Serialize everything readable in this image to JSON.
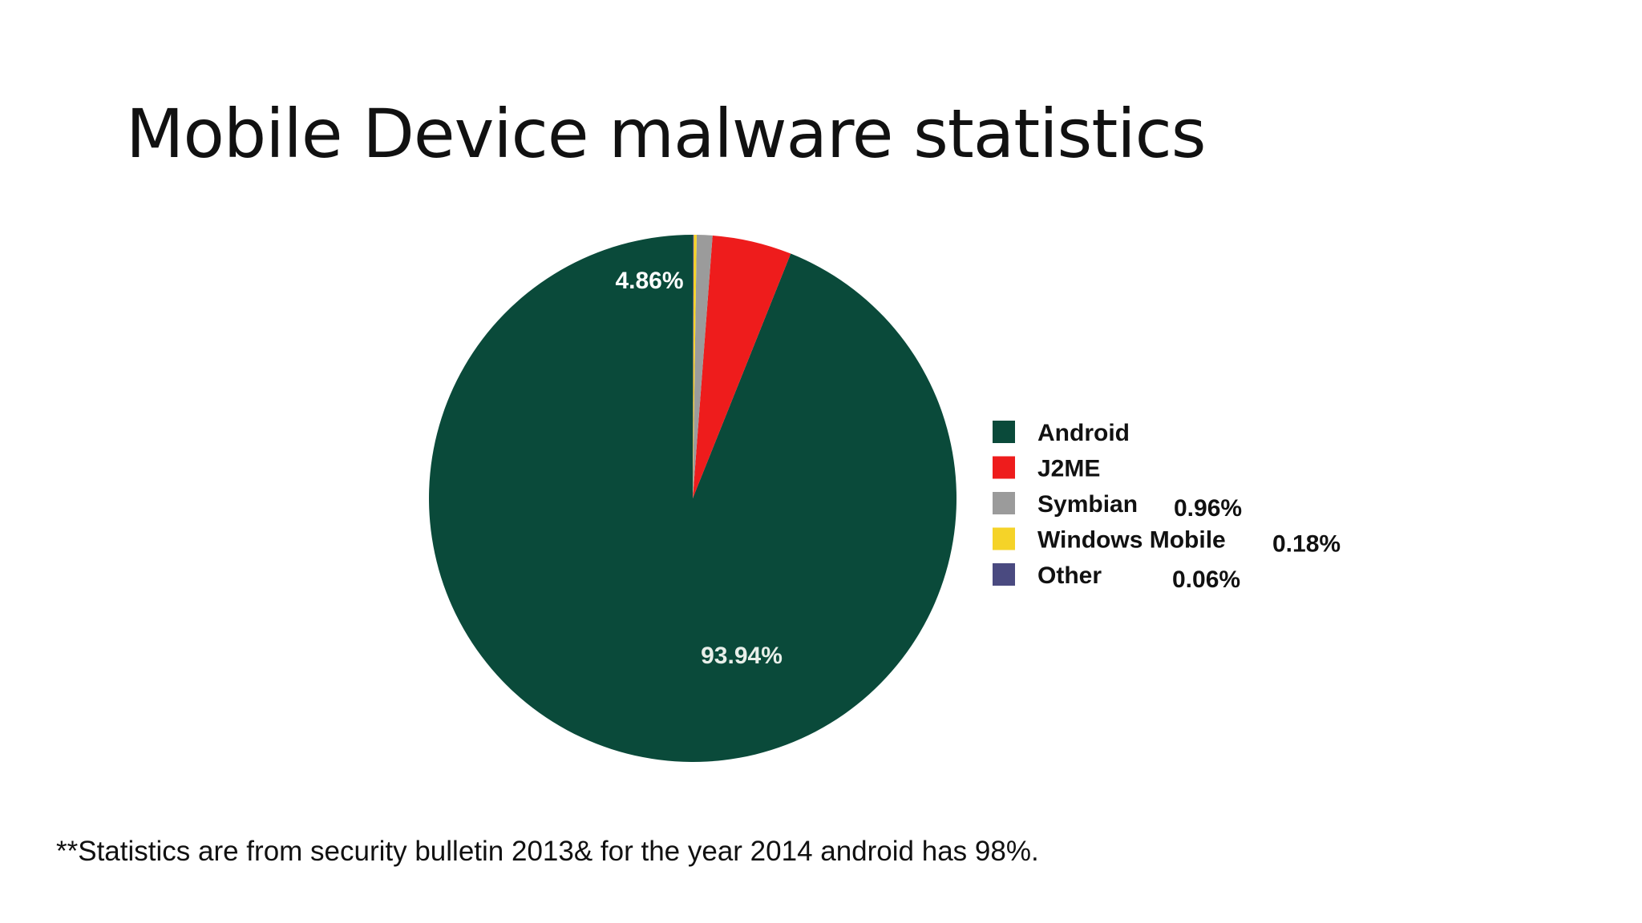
{
  "slide": {
    "title": "Mobile Device malware statistics",
    "footnote": "**Statistics are from security bulletin 2013& for the year 2014 android has 98%."
  },
  "chart_data": {
    "type": "pie",
    "title": "",
    "legend_position": "right",
    "slices": [
      {
        "name": "Android",
        "value": 93.94,
        "label": "93.94%",
        "legend_value": "",
        "color": "#0a4a3a"
      },
      {
        "name": "J2ME",
        "value": 4.86,
        "label": "4.86%",
        "legend_value": "",
        "color": "#ee1c1c"
      },
      {
        "name": "Symbian",
        "value": 0.96,
        "label": "",
        "legend_value": "0.96%",
        "color": "#9b9b9b"
      },
      {
        "name": "Windows Mobile",
        "value": 0.18,
        "label": "",
        "legend_value": "0.18%",
        "color": "#f5d328"
      },
      {
        "name": "Other",
        "value": 0.06,
        "label": "",
        "legend_value": "0.06%",
        "color": "#4a4a80"
      }
    ]
  }
}
